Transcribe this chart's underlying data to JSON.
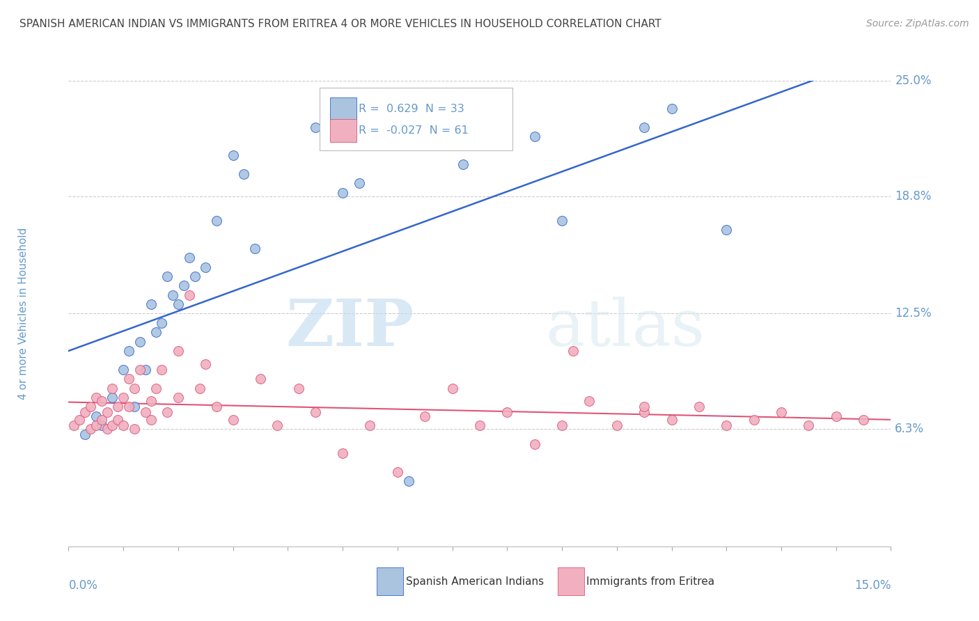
{
  "title": "SPANISH AMERICAN INDIAN VS IMMIGRANTS FROM ERITREA 4 OR MORE VEHICLES IN HOUSEHOLD CORRELATION CHART",
  "source": "Source: ZipAtlas.com",
  "ylabel_label": "4 or more Vehicles in Household",
  "watermark_zip": "ZIP",
  "watermark_atlas": "atlas",
  "legend_blue_r": "0.629",
  "legend_blue_n": "33",
  "legend_pink_r": "-0.027",
  "legend_pink_n": "61",
  "legend_label_blue": "Spanish American Indians",
  "legend_label_pink": "Immigrants from Eritrea",
  "blue_color": "#aac4e0",
  "pink_color": "#f0b0c0",
  "trendline_blue": "#3366cc",
  "trendline_pink": "#dd5577",
  "blue_x": [
    0.3,
    0.5,
    0.6,
    0.8,
    1.0,
    1.1,
    1.2,
    1.3,
    1.4,
    1.5,
    1.6,
    1.7,
    1.8,
    1.9,
    2.0,
    2.1,
    2.2,
    2.3,
    2.5,
    2.7,
    3.0,
    3.2,
    3.4,
    4.5,
    5.0,
    5.3,
    6.2,
    7.2,
    8.5,
    9.0,
    10.5,
    11.0,
    12.0
  ],
  "blue_y": [
    6.0,
    7.0,
    6.5,
    8.0,
    9.5,
    10.5,
    7.5,
    11.0,
    9.5,
    13.0,
    11.5,
    12.0,
    14.5,
    13.5,
    13.0,
    14.0,
    15.5,
    14.5,
    15.0,
    17.5,
    21.0,
    20.0,
    16.0,
    22.5,
    19.0,
    19.5,
    3.5,
    20.5,
    22.0,
    17.5,
    22.5,
    23.5,
    17.0
  ],
  "pink_x": [
    0.1,
    0.2,
    0.3,
    0.4,
    0.4,
    0.5,
    0.5,
    0.6,
    0.6,
    0.7,
    0.7,
    0.8,
    0.8,
    0.9,
    0.9,
    1.0,
    1.0,
    1.1,
    1.1,
    1.2,
    1.2,
    1.3,
    1.4,
    1.5,
    1.5,
    1.6,
    1.7,
    1.8,
    2.0,
    2.0,
    2.2,
    2.4,
    2.5,
    2.7,
    3.0,
    3.5,
    3.8,
    4.2,
    4.5,
    5.0,
    5.5,
    6.0,
    6.5,
    7.0,
    7.5,
    8.0,
    8.5,
    9.0,
    9.5,
    10.0,
    10.5,
    11.0,
    11.5,
    12.0,
    12.5,
    13.0,
    13.5,
    14.0,
    14.5,
    10.5,
    9.2
  ],
  "pink_y": [
    6.5,
    6.8,
    7.2,
    6.3,
    7.5,
    6.5,
    8.0,
    6.8,
    7.8,
    6.3,
    7.2,
    6.5,
    8.5,
    6.8,
    7.5,
    8.0,
    6.5,
    9.0,
    7.5,
    8.5,
    6.3,
    9.5,
    7.2,
    6.8,
    7.8,
    8.5,
    9.5,
    7.2,
    8.0,
    10.5,
    13.5,
    8.5,
    9.8,
    7.5,
    6.8,
    9.0,
    6.5,
    8.5,
    7.2,
    5.0,
    6.5,
    4.0,
    7.0,
    8.5,
    6.5,
    7.2,
    5.5,
    6.5,
    7.8,
    6.5,
    7.2,
    6.8,
    7.5,
    6.5,
    6.8,
    7.2,
    6.5,
    7.0,
    6.8,
    7.5,
    10.5
  ],
  "xmin": 0.0,
  "xmax": 15.0,
  "ymin": 0.0,
  "ymax": 25.0,
  "ytick_vals": [
    6.3,
    12.5,
    18.8,
    25.0
  ],
  "ytick_labels": [
    "6.3%",
    "12.5%",
    "18.8%",
    "25.0%"
  ],
  "xtick_left_label": "0.0%",
  "xtick_right_label": "15.0%",
  "background_color": "#ffffff",
  "grid_color": "#cccccc",
  "axis_label_color": "#6699cc",
  "title_color": "#444444",
  "source_color": "#999999"
}
